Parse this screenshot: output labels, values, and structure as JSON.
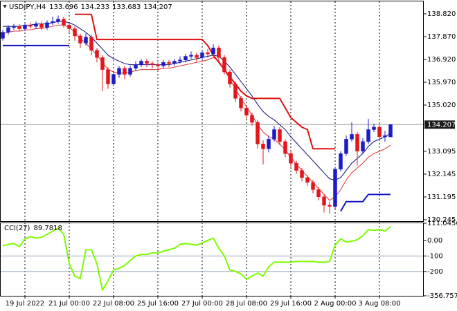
{
  "chart_data": [
    {
      "type": "candlestick",
      "title": "USDJPY,H4",
      "categories": [
        null,
        null,
        null,
        null,
        "19 Jul 2022",
        null,
        null,
        null,
        null,
        null,
        null,
        null,
        "21 Jul 00:00",
        null,
        null,
        null,
        null,
        null,
        null,
        null,
        "22 Jul 08:00",
        null,
        null,
        null,
        null,
        null,
        null,
        null,
        "25 Jul 16:00",
        null,
        null,
        null,
        null,
        null,
        null,
        null,
        "27 Jul 00:00",
        null,
        null,
        null,
        null,
        null,
        null,
        null,
        "28 Jul 08:00",
        null,
        null,
        null,
        null,
        null,
        null,
        null,
        "29 Jul 16:00",
        null,
        null,
        null,
        null,
        null,
        null,
        null,
        "2 Aug 00:00",
        null,
        null,
        null,
        null,
        null,
        null,
        null,
        "3 Aug 08:00",
        null,
        null
      ],
      "open": [
        137.8,
        138.05,
        138.25,
        138.3,
        138.2,
        138.35,
        138.3,
        138.4,
        138.25,
        138.45,
        138.5,
        138.6,
        138.35,
        138.2,
        137.9,
        137.6,
        137.85,
        137.3,
        137.0,
        136.5,
        135.9,
        136.3,
        136.55,
        136.3,
        136.55,
        136.7,
        136.85,
        136.75,
        136.7,
        136.65,
        136.8,
        136.75,
        136.85,
        136.9,
        137.05,
        137.1,
        137.0,
        137.2,
        137.15,
        137.4,
        137.0,
        136.4,
        135.9,
        135.3,
        134.9,
        134.6,
        134.3,
        133.4,
        133.2,
        133.6,
        134.0,
        133.5,
        133.0,
        132.6,
        132.3,
        132.0,
        131.8,
        131.5,
        131.2,
        130.85,
        130.8,
        132.35,
        133.0,
        133.6,
        133.8,
        133.1,
        133.5,
        134.0,
        134.1,
        133.7,
        133.696
      ],
      "high": [
        138.15,
        138.35,
        138.4,
        138.4,
        138.45,
        138.45,
        138.5,
        138.5,
        138.55,
        138.7,
        138.75,
        138.7,
        138.45,
        138.3,
        138.0,
        138.0,
        137.95,
        137.4,
        137.1,
        136.6,
        136.45,
        136.65,
        136.65,
        136.65,
        136.85,
        136.95,
        136.95,
        136.85,
        136.8,
        136.9,
        136.9,
        136.95,
        137.05,
        137.15,
        137.25,
        137.2,
        137.3,
        137.35,
        137.55,
        137.5,
        137.1,
        136.5,
        136.0,
        135.4,
        135.0,
        134.7,
        134.4,
        133.55,
        133.75,
        134.15,
        134.1,
        133.6,
        133.1,
        132.7,
        132.4,
        132.1,
        131.9,
        131.6,
        131.3,
        131.0,
        132.45,
        133.1,
        133.75,
        134.3,
        133.9,
        133.65,
        134.45,
        134.25,
        134.2,
        133.95,
        134.233
      ],
      "low": [
        137.7,
        137.95,
        138.15,
        138.1,
        138.1,
        138.2,
        138.2,
        138.15,
        138.15,
        138.35,
        138.4,
        138.25,
        138.05,
        137.7,
        137.4,
        137.5,
        137.1,
        136.8,
        135.6,
        135.7,
        135.8,
        136.15,
        136.1,
        136.2,
        136.45,
        136.6,
        136.6,
        136.55,
        136.5,
        136.55,
        136.6,
        136.65,
        136.75,
        136.8,
        136.95,
        136.85,
        136.9,
        137.0,
        137.05,
        136.85,
        136.3,
        135.75,
        135.15,
        134.75,
        134.45,
        134.15,
        133.2,
        132.55,
        133.05,
        133.5,
        133.35,
        132.85,
        132.45,
        132.15,
        131.85,
        131.65,
        131.35,
        131.05,
        130.55,
        130.5,
        130.7,
        132.25,
        132.9,
        133.5,
        132.5,
        133.0,
        133.4,
        133.9,
        133.55,
        133.5,
        133.683
      ],
      "close": [
        138.05,
        138.25,
        138.3,
        138.2,
        138.35,
        138.3,
        138.4,
        138.25,
        138.45,
        138.5,
        138.6,
        138.35,
        138.2,
        137.9,
        137.6,
        137.85,
        137.3,
        137.0,
        136.5,
        135.9,
        136.3,
        136.55,
        136.3,
        136.55,
        136.7,
        136.85,
        136.75,
        136.7,
        136.65,
        136.8,
        136.75,
        136.85,
        136.9,
        137.05,
        137.1,
        137.0,
        137.2,
        137.15,
        137.4,
        137.0,
        136.4,
        135.9,
        135.3,
        134.9,
        134.6,
        134.3,
        133.4,
        133.2,
        133.6,
        134.0,
        133.5,
        133.0,
        132.6,
        132.3,
        132.0,
        131.8,
        131.5,
        131.2,
        130.85,
        130.8,
        132.35,
        133.0,
        133.6,
        133.8,
        133.1,
        133.5,
        134.0,
        134.1,
        133.7,
        133.75,
        134.207
      ],
      "up_color": "#1c1cc8",
      "down_color": "#e3161c",
      "series": [
        {
          "color": "#0a0a7a",
          "width": 1,
          "values": [
            138.3,
            138.3,
            138.3,
            138.3,
            138.35,
            138.35,
            138.4,
            138.4,
            138.4,
            138.45,
            138.5,
            138.5,
            138.45,
            138.35,
            138.2,
            138.05,
            137.85,
            137.6,
            137.35,
            137.1,
            136.95,
            136.85,
            136.75,
            136.7,
            136.7,
            136.7,
            136.7,
            136.7,
            136.7,
            136.7,
            136.7,
            136.75,
            136.8,
            136.85,
            136.9,
            136.95,
            137.0,
            137.05,
            137.1,
            137.05,
            136.85,
            136.6,
            136.3,
            136.0,
            135.7,
            135.4,
            135.05,
            134.75,
            134.55,
            134.4,
            134.2,
            134.0,
            133.7,
            133.45,
            133.2,
            132.95,
            132.7,
            132.45,
            132.2,
            131.95,
            131.9,
            132.0,
            132.3,
            132.6,
            132.8,
            133.0,
            133.3,
            133.5,
            133.6,
            133.7,
            133.85
          ]
        },
        {
          "color": "#e03030",
          "width": 1,
          "values": [
            138.0,
            138.05,
            138.1,
            138.1,
            138.15,
            138.15,
            138.2,
            138.2,
            138.25,
            138.3,
            138.35,
            138.35,
            138.25,
            138.05,
            137.8,
            137.6,
            137.35,
            137.1,
            136.8,
            136.5,
            136.4,
            136.35,
            136.35,
            136.4,
            136.45,
            136.5,
            136.5,
            136.5,
            136.5,
            136.55,
            136.55,
            136.6,
            136.65,
            136.7,
            136.75,
            136.8,
            136.85,
            136.9,
            137.0,
            136.85,
            136.5,
            136.1,
            135.7,
            135.3,
            134.95,
            134.6,
            134.2,
            133.9,
            133.7,
            133.6,
            133.4,
            133.15,
            132.85,
            132.55,
            132.3,
            132.05,
            131.8,
            131.55,
            131.3,
            131.05,
            131.2,
            131.5,
            131.9,
            132.2,
            132.4,
            132.6,
            132.85,
            133.0,
            133.1,
            133.2,
            133.35
          ]
        },
        {
          "color": "#e01010",
          "width": 2,
          "values": [
            null,
            null,
            null,
            null,
            null,
            null,
            null,
            null,
            null,
            null,
            null,
            null,
            null,
            138.8,
            138.8,
            138.8,
            138.8,
            137.75,
            137.75,
            137.75,
            137.75,
            137.75,
            137.75,
            137.75,
            137.75,
            137.75,
            137.75,
            137.75,
            137.75,
            137.75,
            137.75,
            137.75,
            137.75,
            137.75,
            137.75,
            137.75,
            137.75,
            137.5,
            137.1,
            136.8,
            136.5,
            136.2,
            135.9,
            135.6,
            135.4,
            135.3,
            135.3,
            135.3,
            135.3,
            135.3,
            135.3,
            134.9,
            134.5,
            134.3,
            134.1,
            134.0,
            133.2,
            133.2,
            133.2,
            133.2,
            133.2,
            null,
            null,
            null,
            null,
            null,
            null,
            null,
            null,
            null,
            null
          ]
        },
        {
          "color": "#1010c0",
          "width": 2,
          "values": [
            137.5,
            137.5,
            137.5,
            137.5,
            137.5,
            137.5,
            137.5,
            137.5,
            137.5,
            137.5,
            137.5,
            137.5,
            137.5,
            null,
            null,
            null,
            null,
            null,
            null,
            null,
            null,
            null,
            null,
            null,
            null,
            null,
            null,
            null,
            null,
            null,
            null,
            null,
            null,
            null,
            null,
            null,
            null,
            null,
            null,
            null,
            null,
            null,
            null,
            null,
            null,
            null,
            null,
            null,
            null,
            null,
            null,
            null,
            null,
            null,
            null,
            null,
            null,
            null,
            null,
            null,
            null,
            130.6,
            131.0,
            131.0,
            131.0,
            131.0,
            131.3,
            131.3,
            131.3,
            131.3,
            131.3
          ]
        }
      ],
      "ylim": [
        130.187,
        139.338
      ],
      "yticks": [
        {
          "value": 138.82,
          "label": "138.820"
        },
        {
          "value": 137.87,
          "label": "137.870"
        },
        {
          "value": 136.92,
          "label": "136.920"
        },
        {
          "value": 135.97,
          "label": "135.970"
        },
        {
          "value": 135.02,
          "label": "135.020"
        },
        133.095,
        132.145,
        131.195,
        130.245
      ],
      "grid": true
    },
    {
      "type": "line",
      "title": "CCI(27)",
      "series": [
        {
          "color": "#7cfc00",
          "width": 2,
          "values": [
            -35,
            -25,
            -20,
            -40,
            10,
            25,
            15,
            20,
            40,
            60,
            80,
            40,
            -150,
            -230,
            -245,
            -60,
            -60,
            -150,
            -320,
            -260,
            -190,
            -180,
            -160,
            -130,
            -100,
            -90,
            -90,
            -80,
            -80,
            -70,
            -60,
            -50,
            -25,
            -20,
            -25,
            -30,
            -15,
            0,
            15,
            -50,
            -100,
            -190,
            -200,
            -215,
            -250,
            -230,
            -210,
            -230,
            -170,
            -140,
            -140,
            -140,
            -140,
            -135,
            -135,
            -135,
            -135,
            -140,
            -140,
            -135,
            -30,
            10,
            -10,
            -5,
            5,
            30,
            70,
            65,
            70,
            60,
            89.7818
          ]
        }
      ],
      "ylim": [
        -356.7578,
        111.0456
      ],
      "yticks": [
        111.0456,
        {
          "value": 0,
          "label": "0.00"
        },
        -100,
        -200,
        -356.7578
      ]
    }
  ]
}
